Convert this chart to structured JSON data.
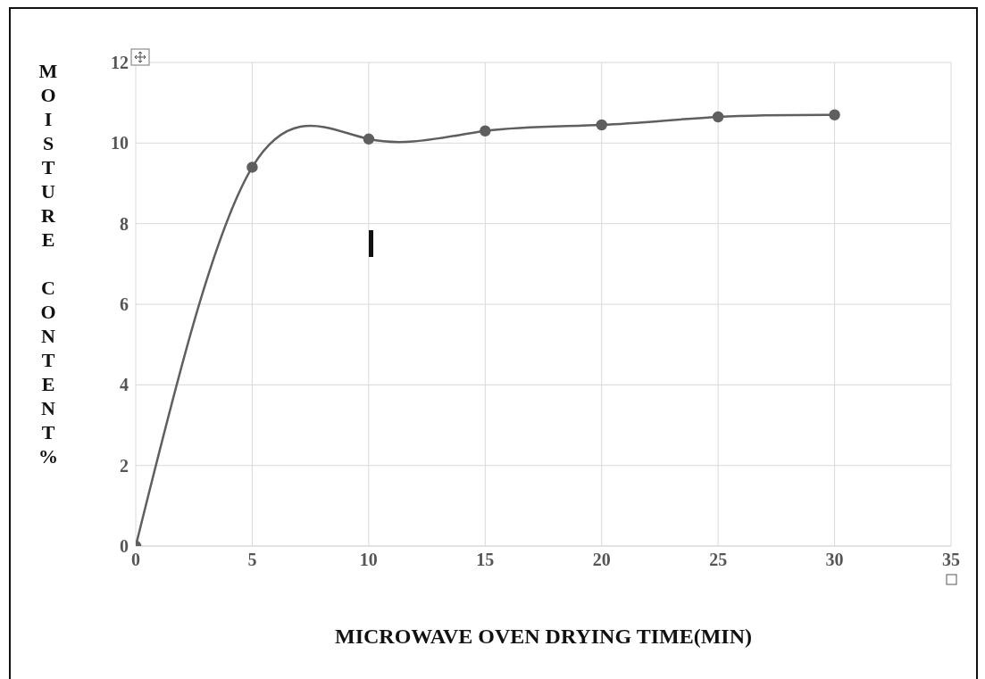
{
  "chart_data": {
    "type": "line",
    "xlabel": "MICROWAVE OVEN DRYING TIME(MIN)",
    "ylabel": "MOISTURE CONTENT%",
    "x": [
      0,
      5,
      10,
      15,
      20,
      25,
      30
    ],
    "series": [
      {
        "color": "#5f5f5f",
        "values": [
          0,
          9.4,
          10.1,
          10.3,
          10.45,
          10.65,
          10.7
        ]
      }
    ],
    "xlim": [
      0,
      35
    ],
    "xticks": [
      0,
      5,
      10,
      15,
      20,
      25,
      30,
      35
    ],
    "ylim": [
      0,
      12
    ],
    "yticks": [
      0,
      2,
      4,
      6,
      8,
      10,
      12
    ],
    "grid": true,
    "marker": "circle",
    "line_style": "solid"
  }
}
